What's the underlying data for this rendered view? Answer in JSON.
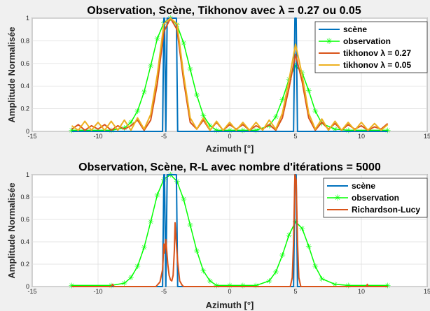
{
  "chart_data": [
    {
      "type": "line",
      "title": "Observation, Scène, Tikhonov avec λ = 0.27 ou 0.05",
      "xlabel": "Azimuth [°]",
      "ylabel": "Amplitude Normalisée",
      "xlim": [
        -15,
        15
      ],
      "ylim": [
        0,
        1
      ],
      "xticks": [
        "-15",
        "-10",
        "-5",
        "0",
        "5",
        "10",
        "15"
      ],
      "yticks": [
        "0",
        "0.2",
        "0.4",
        "0.6",
        "0.8",
        "1"
      ],
      "grid": true,
      "legend_position": "top-right",
      "series": [
        {
          "name": "scène",
          "color": "#0072bd",
          "marker": "none",
          "x": [
            -12,
            -5.1,
            -5.0,
            -4.95,
            -4.85,
            -4.75,
            -4.05,
            -3.95,
            -3.85,
            4.85,
            4.95,
            5.05,
            5.15,
            12
          ],
          "y": [
            0,
            0,
            1,
            1,
            0,
            1,
            1,
            0,
            0,
            0,
            1,
            1,
            0,
            0
          ]
        },
        {
          "name": "observation",
          "color": "#00ff00",
          "marker": "star",
          "x": [
            -12,
            -9,
            -8,
            -7.5,
            -7,
            -6.5,
            -6,
            -5.5,
            -5,
            -4.5,
            -4,
            -3.5,
            -3,
            -2.5,
            -2,
            -1.5,
            -1,
            0,
            1,
            2,
            3,
            3.5,
            4,
            4.5,
            5,
            5.5,
            6,
            6.5,
            7,
            8,
            9,
            12
          ],
          "y": [
            0.01,
            0.01,
            0.03,
            0.08,
            0.18,
            0.35,
            0.58,
            0.82,
            0.96,
            1.0,
            0.94,
            0.78,
            0.55,
            0.32,
            0.14,
            0.05,
            0.01,
            0.01,
            0.01,
            0.01,
            0.05,
            0.13,
            0.28,
            0.46,
            0.58,
            0.52,
            0.36,
            0.18,
            0.07,
            0.02,
            0.01,
            0.01
          ]
        },
        {
          "name": "tikhonov λ = 0.27",
          "color": "#d95319",
          "marker": "none",
          "x": [
            -12,
            -11.5,
            -11,
            -10.5,
            -10,
            -9.5,
            -9,
            -8.5,
            -8,
            -7.5,
            -7,
            -6.5,
            -6,
            -5.5,
            -5,
            -4.5,
            -4,
            -3.5,
            -3,
            -2.5,
            -2,
            -1.5,
            -1,
            -0.5,
            0,
            0.5,
            1,
            1.5,
            2,
            2.5,
            3,
            3.5,
            4,
            4.5,
            5,
            5.5,
            6,
            6.5,
            7,
            7.5,
            8,
            8.5,
            9,
            9.5,
            10,
            10.5,
            11,
            11.5,
            12
          ],
          "y": [
            0.02,
            0.06,
            0.01,
            0.05,
            0.02,
            0.06,
            0.01,
            0.05,
            0.02,
            0.05,
            0.1,
            0.01,
            0.1,
            0.42,
            0.88,
            1.0,
            0.9,
            0.45,
            0.08,
            0.02,
            0.1,
            0.01,
            0.08,
            0.01,
            0.06,
            0.02,
            0.06,
            0.01,
            0.05,
            0.02,
            0.06,
            0.01,
            0.12,
            0.38,
            0.68,
            0.44,
            0.12,
            0.01,
            0.08,
            0.02,
            0.07,
            0.01,
            0.06,
            0.02,
            0.05,
            0.01,
            0.04,
            0.02,
            0.07
          ]
        },
        {
          "name": "tikhonov λ = 0.05",
          "color": "#edb120",
          "marker": "none",
          "x": [
            -12,
            -11.5,
            -11,
            -10.5,
            -10,
            -9.5,
            -9,
            -8.5,
            -8,
            -7.5,
            -7,
            -6.5,
            -6,
            -5.5,
            -5,
            -4.5,
            -4,
            -3.5,
            -3,
            -2.5,
            -2,
            -1.5,
            -1,
            -0.5,
            0,
            0.5,
            1,
            1.5,
            2,
            2.5,
            3,
            3.5,
            4,
            4.5,
            5,
            5.5,
            6,
            6.5,
            7,
            7.5,
            8,
            8.5,
            9,
            9.5,
            10,
            10.5,
            11,
            11.5,
            12
          ],
          "y": [
            0.05,
            0.01,
            0.09,
            0.01,
            0.08,
            0.01,
            0.09,
            0.01,
            0.1,
            0.01,
            0.12,
            0.02,
            0.15,
            0.5,
            0.95,
            1.0,
            0.95,
            0.5,
            0.12,
            0.02,
            0.12,
            0.01,
            0.09,
            0.01,
            0.08,
            0.01,
            0.08,
            0.01,
            0.08,
            0.01,
            0.1,
            0.02,
            0.16,
            0.45,
            0.77,
            0.5,
            0.16,
            0.02,
            0.11,
            0.01,
            0.09,
            0.01,
            0.08,
            0.01,
            0.08,
            0.01,
            0.07,
            0.01,
            0.06
          ]
        }
      ]
    },
    {
      "type": "line",
      "title": "Observation, Scène, R-L avec nombre d'itérations = 5000",
      "xlabel": "Azimuth [°]",
      "ylabel": "Amplitude Normalisée",
      "xlim": [
        -15,
        15
      ],
      "ylim": [
        0,
        1
      ],
      "xticks": [
        "-15",
        "-10",
        "-5",
        "0",
        "5",
        "10",
        "15"
      ],
      "yticks": [
        "0",
        "0.2",
        "0.4",
        "0.6",
        "0.8",
        "1"
      ],
      "grid": true,
      "legend_position": "top-right",
      "series": [
        {
          "name": "scène",
          "color": "#0072bd",
          "marker": "none",
          "x": [
            -12,
            -5.1,
            -5.0,
            -4.95,
            -4.85,
            -4.75,
            -4.05,
            -3.95,
            -3.85,
            4.85,
            4.95,
            5.05,
            5.15,
            12
          ],
          "y": [
            0,
            0,
            1,
            1,
            0,
            1,
            1,
            0,
            0,
            0,
            1,
            1,
            0,
            0
          ]
        },
        {
          "name": "observation",
          "color": "#00ff00",
          "marker": "star",
          "x": [
            -12,
            -9,
            -8,
            -7.5,
            -7,
            -6.5,
            -6,
            -5.5,
            -5,
            -4.5,
            -4,
            -3.5,
            -3,
            -2.5,
            -2,
            -1.5,
            -1,
            0,
            1,
            2,
            3,
            3.5,
            4,
            4.5,
            5,
            5.5,
            6,
            6.5,
            7,
            8,
            9,
            12
          ],
          "y": [
            0.01,
            0.01,
            0.03,
            0.08,
            0.18,
            0.35,
            0.58,
            0.82,
            0.96,
            1.0,
            0.94,
            0.78,
            0.55,
            0.32,
            0.14,
            0.05,
            0.01,
            0.01,
            0.01,
            0.01,
            0.05,
            0.13,
            0.28,
            0.46,
            0.58,
            0.52,
            0.36,
            0.18,
            0.07,
            0.02,
            0.01,
            0.01
          ]
        },
        {
          "name": "Richardson-Lucy",
          "color": "#d95319",
          "marker": "none",
          "x": [
            -12,
            -9.0,
            -8.9,
            -8.8,
            -5.6,
            -5.3,
            -5.1,
            -5.0,
            -4.95,
            -4.85,
            -4.7,
            -4.6,
            -4.5,
            -4.4,
            -4.3,
            -4.2,
            -4.15,
            -4.05,
            -3.95,
            -3.8,
            -3.6,
            -3.5,
            4.6,
            4.75,
            4.85,
            4.95,
            5.05,
            5.15,
            5.25,
            5.4,
            10.4,
            10.45,
            10.5,
            12
          ],
          "y": [
            0,
            0,
            0.02,
            0,
            0,
            0.04,
            0.15,
            0.38,
            0.3,
            0.42,
            0.2,
            0.1,
            0.06,
            0.05,
            0.1,
            0.33,
            0.57,
            0.38,
            0.22,
            0.05,
            0.01,
            0,
            0,
            0.08,
            0.4,
            1.0,
            0.95,
            0.4,
            0.08,
            0,
            0,
            0.02,
            0,
            0
          ]
        }
      ]
    }
  ]
}
